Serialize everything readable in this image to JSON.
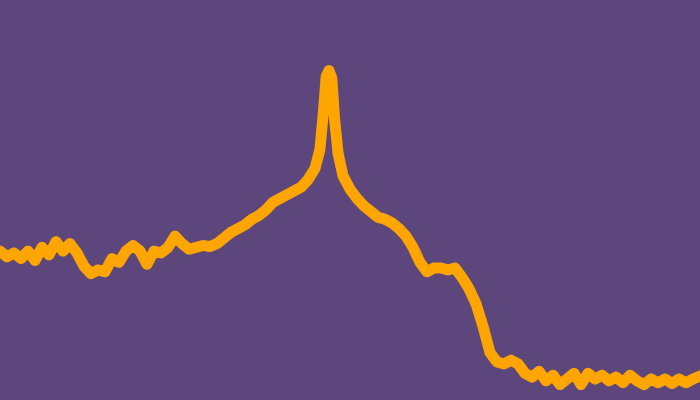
{
  "colors": {
    "background": "#5c467b",
    "line": "#ffa500"
  },
  "chart_data": {
    "type": "line",
    "title": "",
    "xlabel": "",
    "ylabel": "",
    "grid": false,
    "legend": "none",
    "xlim": [
      0,
      100
    ],
    "ylim": [
      0,
      100
    ],
    "series": [
      {
        "x": [
          0,
          1,
          2,
          3,
          4,
          5,
          6,
          7,
          8,
          9,
          10,
          11,
          12,
          13,
          14,
          15,
          16,
          17,
          18,
          19,
          20,
          21,
          22,
          23,
          24,
          25,
          26,
          27,
          28,
          29,
          30,
          31,
          32,
          33,
          34,
          35,
          36,
          37,
          38,
          39,
          40,
          41,
          42,
          43,
          44,
          45,
          45.7,
          46.2,
          46.6,
          47,
          47.4,
          47.8,
          48.3,
          49,
          50,
          51,
          52,
          53,
          54,
          55,
          56,
          57,
          58,
          59,
          60,
          61,
          62,
          63,
          64,
          65,
          66,
          67,
          68,
          69,
          70,
          71,
          72,
          73,
          74,
          75,
          76,
          77,
          78,
          79,
          80,
          81,
          82,
          83,
          84,
          85,
          86,
          87,
          88,
          89,
          90,
          91,
          92,
          93,
          94,
          95,
          96,
          97,
          98,
          99,
          100
        ],
        "values": [
          38,
          36.5,
          37.5,
          36,
          38,
          35.5,
          39,
          37,
          40.5,
          38,
          40,
          37.5,
          34,
          32,
          33,
          32.5,
          36,
          35,
          38,
          39.5,
          38,
          34.5,
          38,
          37.5,
          39,
          42,
          40,
          38.5,
          39,
          39.5,
          39.2,
          40,
          41.5,
          43,
          44,
          45,
          46.5,
          47.5,
          49,
          51,
          52,
          53,
          54,
          55,
          57,
          60,
          65,
          75,
          84.5,
          86,
          84,
          73,
          64,
          58,
          54.5,
          52,
          50,
          48.5,
          47,
          46.5,
          45.5,
          44,
          42,
          39,
          35,
          32.5,
          33.5,
          33.5,
          33,
          33.5,
          31,
          28,
          24,
          18,
          11,
          8.5,
          8,
          9,
          8,
          5.5,
          4.5,
          6,
          3.5,
          5,
          2.5,
          4,
          5.5,
          2.5,
          5.5,
          4,
          5,
          3.5,
          4.5,
          3,
          5,
          3.5,
          2.5,
          4,
          3,
          4,
          2.8,
          4,
          3,
          4,
          4.8
        ]
      }
    ]
  }
}
